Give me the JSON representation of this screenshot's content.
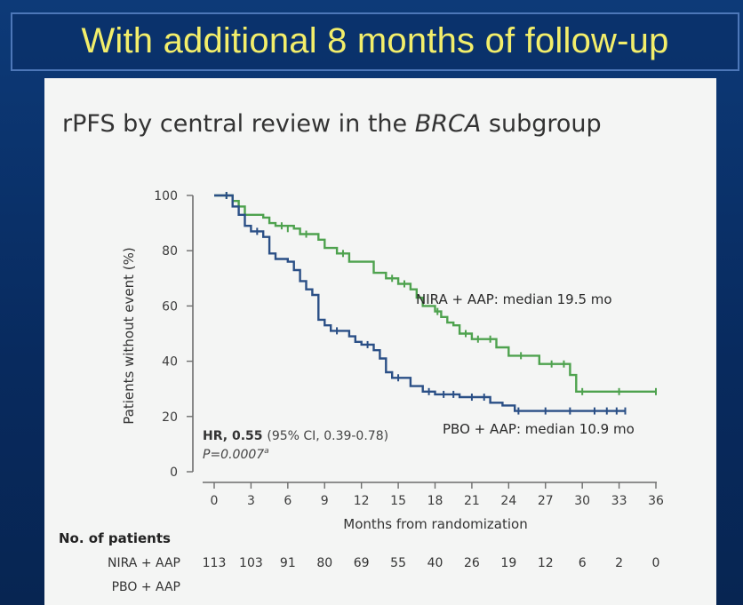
{
  "slide": {
    "title": "With additional 8 months of follow-up",
    "title_color": "#f3ee6a",
    "background_color": "#0b2f66"
  },
  "chart_data": {
    "type": "line",
    "subtype": "kaplan-meier",
    "title_parts": [
      "rPFS by central review in the ",
      "BRCA",
      " subgroup"
    ],
    "xlabel": "Months from randomization",
    "ylabel": "Patients without event (%)",
    "xlim": [
      0,
      36
    ],
    "ylim": [
      0,
      100
    ],
    "x_ticks": [
      0,
      3,
      6,
      9,
      12,
      15,
      18,
      21,
      24,
      27,
      30,
      33,
      36
    ],
    "y_ticks": [
      0,
      20,
      40,
      60,
      80,
      100
    ],
    "grid": false,
    "series": [
      {
        "name": "NIRA + AAP",
        "color": "#4ea24e",
        "points": [
          [
            0,
            100
          ],
          [
            1.5,
            100
          ],
          [
            1.5,
            98
          ],
          [
            2,
            98
          ],
          [
            2,
            96
          ],
          [
            2.5,
            96
          ],
          [
            2.5,
            93
          ],
          [
            4,
            93
          ],
          [
            4,
            92
          ],
          [
            4.5,
            92
          ],
          [
            4.5,
            90
          ],
          [
            5,
            90
          ],
          [
            5,
            89
          ],
          [
            6.5,
            89
          ],
          [
            6.5,
            88
          ],
          [
            7,
            88
          ],
          [
            7,
            86
          ],
          [
            8.5,
            86
          ],
          [
            8.5,
            84
          ],
          [
            9,
            84
          ],
          [
            9,
            81
          ],
          [
            10,
            81
          ],
          [
            10,
            79
          ],
          [
            11,
            79
          ],
          [
            11,
            76
          ],
          [
            13,
            76
          ],
          [
            13,
            72
          ],
          [
            14,
            72
          ],
          [
            14,
            70
          ],
          [
            15,
            70
          ],
          [
            15,
            68
          ],
          [
            16,
            68
          ],
          [
            16,
            66
          ],
          [
            16.5,
            66
          ],
          [
            16.5,
            63
          ],
          [
            17,
            63
          ],
          [
            17,
            60
          ],
          [
            18,
            60
          ],
          [
            18,
            58
          ],
          [
            18.5,
            58
          ],
          [
            18.5,
            56
          ],
          [
            19,
            56
          ],
          [
            19,
            54
          ],
          [
            19.5,
            54
          ],
          [
            19.5,
            53
          ],
          [
            20,
            53
          ],
          [
            20,
            50
          ],
          [
            21,
            50
          ],
          [
            21,
            48
          ],
          [
            23,
            48
          ],
          [
            23,
            45
          ],
          [
            24,
            45
          ],
          [
            24,
            42
          ],
          [
            26.5,
            42
          ],
          [
            26.5,
            39
          ],
          [
            29,
            39
          ],
          [
            29,
            35
          ],
          [
            29.5,
            35
          ],
          [
            29.5,
            29
          ],
          [
            36,
            29
          ]
        ],
        "censors": [
          [
            1,
            100
          ],
          [
            5.5,
            89
          ],
          [
            6,
            88
          ],
          [
            7.5,
            86
          ],
          [
            10.5,
            79
          ],
          [
            14.5,
            70
          ],
          [
            15.5,
            68
          ],
          [
            18.2,
            58
          ],
          [
            20.5,
            50
          ],
          [
            21.5,
            48
          ],
          [
            22.5,
            48
          ],
          [
            25,
            42
          ],
          [
            27.5,
            39
          ],
          [
            28.5,
            39
          ],
          [
            30,
            29
          ],
          [
            33,
            29
          ],
          [
            36,
            29
          ]
        ],
        "median_label": "NIRA + AAP: median 19.5 mo"
      },
      {
        "name": "PBO + AAP",
        "color": "#2a4f86",
        "points": [
          [
            0,
            100
          ],
          [
            1.5,
            100
          ],
          [
            1.5,
            96
          ],
          [
            2,
            96
          ],
          [
            2,
            93
          ],
          [
            2.5,
            93
          ],
          [
            2.5,
            89
          ],
          [
            3,
            89
          ],
          [
            3,
            87
          ],
          [
            4,
            87
          ],
          [
            4,
            85
          ],
          [
            4.5,
            85
          ],
          [
            4.5,
            79
          ],
          [
            5,
            79
          ],
          [
            5,
            77
          ],
          [
            6,
            77
          ],
          [
            6,
            76
          ],
          [
            6.5,
            76
          ],
          [
            6.5,
            73
          ],
          [
            7,
            73
          ],
          [
            7,
            69
          ],
          [
            7.5,
            69
          ],
          [
            7.5,
            66
          ],
          [
            8,
            66
          ],
          [
            8,
            64
          ],
          [
            8.5,
            64
          ],
          [
            8.5,
            55
          ],
          [
            9,
            55
          ],
          [
            9,
            53
          ],
          [
            9.5,
            53
          ],
          [
            9.5,
            51
          ],
          [
            11,
            51
          ],
          [
            11,
            49
          ],
          [
            11.5,
            49
          ],
          [
            11.5,
            47
          ],
          [
            12,
            47
          ],
          [
            12,
            46
          ],
          [
            13,
            46
          ],
          [
            13,
            44
          ],
          [
            13.5,
            44
          ],
          [
            13.5,
            41
          ],
          [
            14,
            41
          ],
          [
            14,
            36
          ],
          [
            14.5,
            36
          ],
          [
            14.5,
            34
          ],
          [
            16,
            34
          ],
          [
            16,
            31
          ],
          [
            17,
            31
          ],
          [
            17,
            29
          ],
          [
            18,
            29
          ],
          [
            18,
            28
          ],
          [
            20,
            28
          ],
          [
            20,
            27
          ],
          [
            22.5,
            27
          ],
          [
            22.5,
            25
          ],
          [
            23.5,
            25
          ],
          [
            23.5,
            24
          ],
          [
            24.5,
            24
          ],
          [
            24.5,
            22
          ],
          [
            33.5,
            22
          ]
        ],
        "censors": [
          [
            1,
            100
          ],
          [
            3.5,
            87
          ],
          [
            10,
            51
          ],
          [
            12.5,
            46
          ],
          [
            15,
            34
          ],
          [
            17.5,
            29
          ],
          [
            18.7,
            28
          ],
          [
            19.5,
            28
          ],
          [
            21,
            27
          ],
          [
            22,
            27
          ],
          [
            24.8,
            22
          ],
          [
            27,
            22
          ],
          [
            29,
            22
          ],
          [
            31,
            22
          ],
          [
            32,
            22
          ],
          [
            32.8,
            22
          ],
          [
            33.5,
            22
          ]
        ],
        "median_label": "PBO + AAP: median 10.9 mo"
      }
    ],
    "hr_label": "HR, 0.55",
    "hr_ci": "(95% CI, 0.39-0.78)",
    "p_value": "P=0.0007",
    "p_superscript": "a",
    "risk_table": {
      "header": "No. of patients",
      "rows": [
        {
          "label": "NIRA + AAP",
          "values": [
            "113",
            "103",
            "91",
            "80",
            "69",
            "55",
            "40",
            "26",
            "19",
            "12",
            "6",
            "2",
            "0"
          ]
        },
        {
          "label": "PBO + AAP",
          "values": []
        }
      ]
    }
  }
}
